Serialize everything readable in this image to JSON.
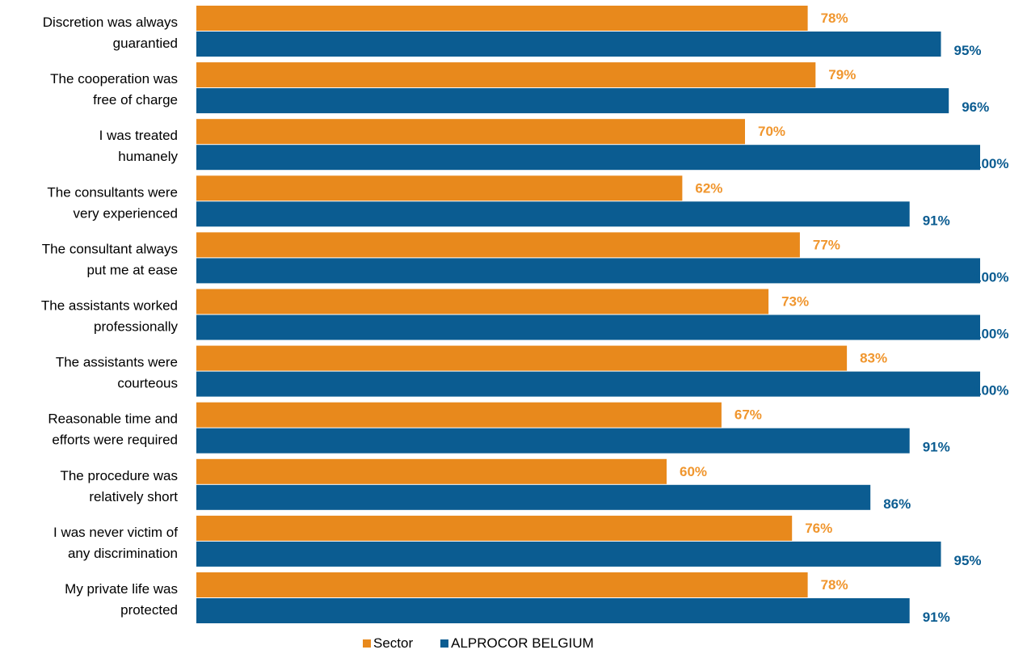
{
  "chart_data": {
    "type": "bar",
    "orientation": "horizontal",
    "categories": [
      [
        "Discretion was always",
        "guarantied"
      ],
      [
        "The cooperation was",
        "free of charge"
      ],
      [
        "I was treated",
        "humanely"
      ],
      [
        "The consultants were",
        "very experienced"
      ],
      [
        "The consultant always",
        "put me at ease"
      ],
      [
        "The assistants worked",
        "professionally"
      ],
      [
        "The assistants were",
        "courteous"
      ],
      [
        "Reasonable time and",
        "efforts were required"
      ],
      [
        "The procedure was",
        "relatively short"
      ],
      [
        "I was never victim of",
        "any discrimination"
      ],
      [
        "My private life was",
        "protected"
      ]
    ],
    "series": [
      {
        "name": "Sector",
        "color": "#E8891C",
        "label_color": "#F0962E",
        "values": [
          78,
          79,
          70,
          62,
          77,
          73,
          83,
          67,
          60,
          76,
          78
        ],
        "labels": [
          "78%",
          "79%",
          "70%",
          "62%",
          "77%",
          "73%",
          "83%",
          "67%",
          "60%",
          "76%",
          "78%"
        ]
      },
      {
        "name": "ALPROCOR BELGIUM",
        "color": "#0B5C91",
        "label_color": "#0B5C91",
        "values": [
          95,
          96,
          100,
          91,
          100,
          100,
          100,
          91,
          86,
          95,
          91
        ],
        "labels": [
          "95%",
          "96%",
          "100%",
          "91%",
          "100%",
          "100%",
          "100%",
          "91%",
          "86%",
          "95%",
          "91%"
        ]
      }
    ],
    "xlim": [
      0,
      100
    ],
    "grid": false,
    "legend_position": "bottom",
    "title": "",
    "xlabel": "",
    "ylabel": ""
  }
}
